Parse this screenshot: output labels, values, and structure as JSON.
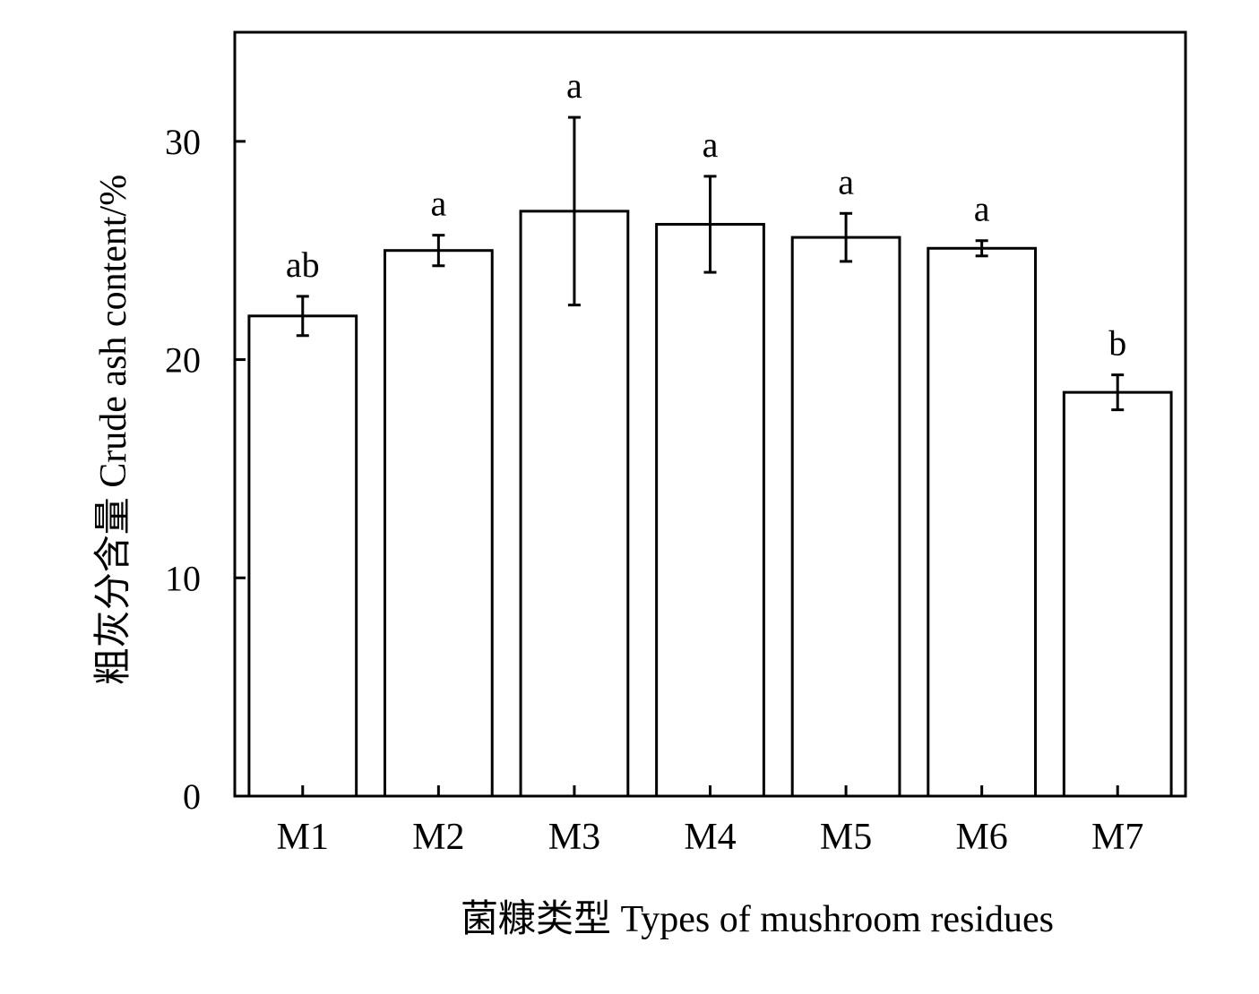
{
  "chart_data": {
    "type": "bar",
    "categories": [
      "M1",
      "M2",
      "M3",
      "M4",
      "M5",
      "M6",
      "M7"
    ],
    "values": [
      22.0,
      25.0,
      26.8,
      26.2,
      25.6,
      25.1,
      18.5
    ],
    "error": [
      0.9,
      0.7,
      4.3,
      2.2,
      1.1,
      0.35,
      0.8
    ],
    "significance": [
      "ab",
      "a",
      "a",
      "a",
      "a",
      "a",
      "b"
    ],
    "xlabel": "菌糠类型  Types of mushroom residues",
    "ylabel": "粗灰分含量  Crude ash content/%",
    "ylim": [
      0,
      35
    ],
    "yticks": [
      0,
      10,
      20,
      30
    ],
    "grid": false,
    "colors": {
      "bar_fill": "#ffffff",
      "stroke": "#000000"
    }
  }
}
